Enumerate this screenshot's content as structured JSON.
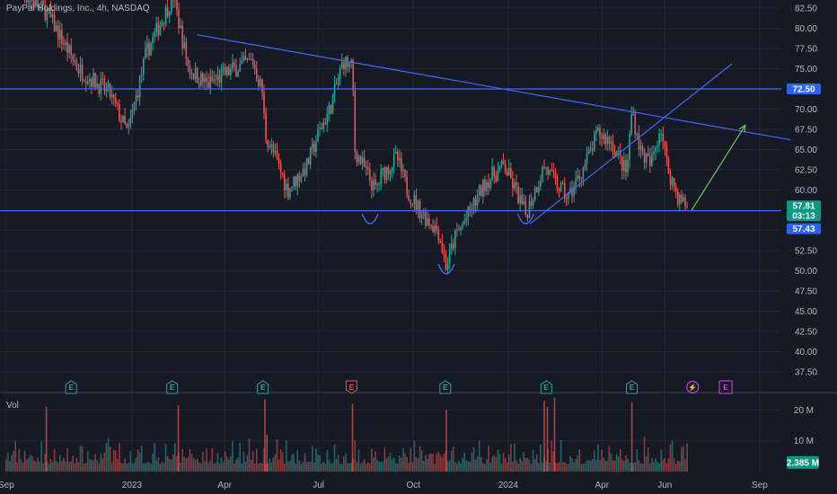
{
  "header": {
    "title": "PayPal Holdings, Inc., 4h, NASDAQ"
  },
  "volume_pane": {
    "label": "Vol"
  },
  "colors": {
    "background": "#161a25",
    "grid": "#232733",
    "up": "#26a69a",
    "down": "#ef5350",
    "trendline": "#3d6af5",
    "projection_arrow": "#66bb6a",
    "price_tag_green": "#089981",
    "price_tag_blue": "#2962ff",
    "earnings_green": "#26a69a",
    "earnings_red": "#ef5350",
    "earnings_purple": "#e040fb",
    "text": "#b2b5be"
  },
  "chart_data": {
    "type": "candlestick",
    "symbol": "PayPal Holdings, Inc.",
    "interval": "4h",
    "exchange": "NASDAQ",
    "x_tick_labels": [
      "Sep",
      "2023",
      "Apr",
      "Jul",
      "Oct",
      "2024",
      "Apr",
      "Jun",
      "Sep"
    ],
    "y_ticks": [
      37.5,
      40.0,
      42.5,
      45.0,
      47.5,
      50.0,
      52.5,
      55.0,
      57.5,
      60.0,
      62.5,
      65.0,
      67.5,
      70.0,
      72.5,
      75.0,
      77.5,
      80.0,
      82.5
    ],
    "ylim": [
      35.5,
      83.5
    ],
    "price_path": [
      [
        "2022-09-01",
        86
      ],
      [
        "2022-10-10",
        82
      ],
      [
        "2022-11-10",
        75
      ],
      [
        "2022-12-10",
        72
      ],
      [
        "2022-12-28",
        67
      ],
      [
        "2023-01-15",
        77
      ],
      [
        "2023-02-10",
        84
      ],
      [
        "2023-02-25",
        75
      ],
      [
        "2023-03-15",
        73
      ],
      [
        "2023-04-10",
        75
      ],
      [
        "2023-04-28",
        76
      ],
      [
        "2023-05-08",
        72
      ],
      [
        "2023-05-10",
        67
      ],
      [
        "2023-05-20",
        64
      ],
      [
        "2023-06-01",
        60
      ],
      [
        "2023-06-20",
        63
      ],
      [
        "2023-07-01",
        67
      ],
      [
        "2023-07-12",
        70
      ],
      [
        "2023-07-25",
        76
      ],
      [
        "2023-08-03",
        75
      ],
      [
        "2023-08-05",
        65
      ],
      [
        "2023-08-25",
        60
      ],
      [
        "2023-09-01",
        62
      ],
      [
        "2023-09-15",
        64
      ],
      [
        "2023-09-25",
        60
      ],
      [
        "2023-10-10",
        57
      ],
      [
        "2023-10-25",
        55
      ],
      [
        "2023-11-02",
        50.5
      ],
      [
        "2023-11-10",
        54
      ],
      [
        "2023-11-28",
        58
      ],
      [
        "2023-12-10",
        61
      ],
      [
        "2023-12-28",
        63
      ],
      [
        "2024-01-08",
        60
      ],
      [
        "2024-01-18",
        57
      ],
      [
        "2024-02-05",
        63
      ],
      [
        "2024-02-15",
        61
      ],
      [
        "2024-02-28",
        59
      ],
      [
        "2024-03-15",
        63
      ],
      [
        "2024-03-28",
        67
      ],
      [
        "2024-04-10",
        66
      ],
      [
        "2024-04-25",
        62
      ],
      [
        "2024-04-30",
        70
      ],
      [
        "2024-05-08",
        65
      ],
      [
        "2024-05-18",
        63
      ],
      [
        "2024-05-28",
        68
      ],
      [
        "2024-06-03",
        63
      ],
      [
        "2024-06-14",
        59
      ],
      [
        "2024-06-24",
        57.8
      ]
    ],
    "volume_axis": {
      "labels": [
        "20 M",
        "10 M"
      ],
      "values": [
        20000000,
        10000000
      ],
      "max": 24500000
    },
    "last_volume": {
      "label": "2.385 M",
      "value": 2385000
    },
    "volume_spikes": [
      [
        "2022-10-10",
        21000000
      ],
      [
        "2023-02-15",
        21500000
      ],
      [
        "2023-05-10",
        23500000
      ],
      [
        "2023-05-12",
        12000000
      ],
      [
        "2023-08-03",
        22000000
      ],
      [
        "2023-11-02",
        20000000
      ],
      [
        "2024-02-05",
        23000000
      ],
      [
        "2024-02-08",
        21000000
      ],
      [
        "2024-02-15",
        24000000
      ],
      [
        "2024-04-30",
        22500000
      ]
    ],
    "price_tags": [
      {
        "value": 72.5,
        "label": "72.50",
        "color": "#2962ff"
      },
      {
        "value": 57.81,
        "label": "57.81",
        "color": "#089981"
      },
      {
        "value": 57.81,
        "label": "03:13",
        "color": "#089981"
      },
      {
        "value": 57.43,
        "label": "57.43",
        "color": "#2962ff"
      }
    ],
    "earnings_markers": [
      {
        "date": "2022-11-03",
        "label": "E",
        "kind": "up"
      },
      {
        "date": "2023-02-09",
        "label": "E",
        "kind": "up"
      },
      {
        "date": "2023-05-08",
        "label": "E",
        "kind": "up"
      },
      {
        "date": "2023-08-02",
        "label": "E",
        "kind": "down"
      },
      {
        "date": "2023-11-01",
        "label": "E",
        "kind": "up"
      },
      {
        "date": "2024-02-07",
        "label": "E",
        "kind": "up"
      },
      {
        "date": "2024-04-30",
        "label": "E",
        "kind": "up"
      },
      {
        "date": "2024-06-28",
        "label": "⚡",
        "kind": "event"
      },
      {
        "date": "2024-07-30",
        "label": "E",
        "kind": "future"
      }
    ],
    "drawings": {
      "horizontal_levels": [
        72.5,
        57.43
      ],
      "descending_trendline": [
        [
          "2023-03-05",
          79.2
        ],
        [
          "2024-10-01",
          66.2
        ]
      ],
      "ascending_trendline": [
        [
          "2024-01-22",
          55.8
        ],
        [
          "2024-08-05",
          75.6
        ]
      ],
      "projection_arrow": [
        [
          "2024-06-27",
          57.5
        ],
        [
          "2024-08-18",
          68.0
        ]
      ],
      "pivot_arcs": [
        [
          "2023-08-20",
          56.5
        ],
        [
          "2023-11-02",
          50.3
        ],
        [
          "2024-01-18",
          56.5
        ]
      ]
    }
  }
}
